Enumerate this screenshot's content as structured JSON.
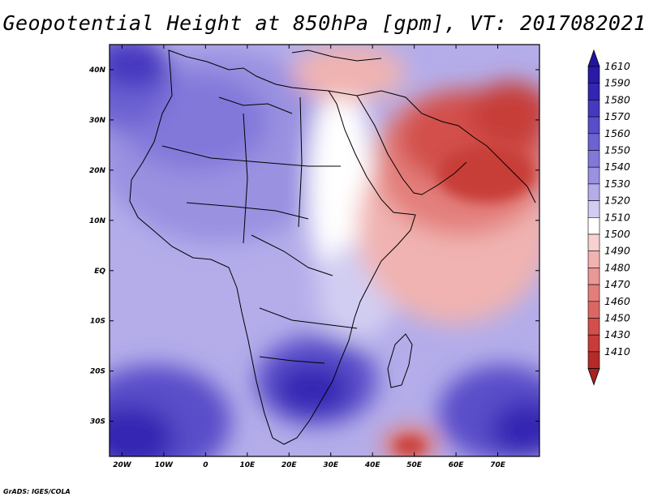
{
  "title": "Geopotential Height at 850hPa [gpm], VT: 2017082021",
  "credit": "GrADS: IGES/COLA",
  "map": {
    "region": "Africa and Middle East",
    "projection": "lat-lon",
    "lon_range": [
      -23,
      80
    ],
    "lat_range": [
      -37,
      45
    ],
    "lon_ticks": [
      {
        "value": -20,
        "label": "20W"
      },
      {
        "value": -10,
        "label": "10W"
      },
      {
        "value": 0,
        "label": "0"
      },
      {
        "value": 10,
        "label": "10E"
      },
      {
        "value": 20,
        "label": "20E"
      },
      {
        "value": 30,
        "label": "30E"
      },
      {
        "value": 40,
        "label": "40E"
      },
      {
        "value": 50,
        "label": "50E"
      },
      {
        "value": 60,
        "label": "60E"
      },
      {
        "value": 70,
        "label": "70E"
      }
    ],
    "lat_ticks": [
      {
        "value": 40,
        "label": "40N"
      },
      {
        "value": 30,
        "label": "30N"
      },
      {
        "value": 20,
        "label": "20N"
      },
      {
        "value": 10,
        "label": "10N"
      },
      {
        "value": 0,
        "label": "EQ"
      },
      {
        "value": -10,
        "label": "10S"
      },
      {
        "value": -20,
        "label": "20S"
      },
      {
        "value": -30,
        "label": "30S"
      }
    ]
  },
  "colorbar": {
    "levels": [
      {
        "label": "1610",
        "color": "#2a1aa6"
      },
      {
        "label": "1590",
        "color": "#3425b3"
      },
      {
        "label": "1580",
        "color": "#4738c0"
      },
      {
        "label": "1570",
        "color": "#5a4dc9"
      },
      {
        "label": "1560",
        "color": "#6d62d2"
      },
      {
        "label": "1550",
        "color": "#8278da"
      },
      {
        "label": "1540",
        "color": "#9a91e1"
      },
      {
        "label": "1530",
        "color": "#b4adea"
      },
      {
        "label": "1520",
        "color": "#d1cdf2"
      },
      {
        "label": "1510",
        "color": "#ffffff"
      },
      {
        "label": "1500",
        "color": "#f6d1d0"
      },
      {
        "label": "1490",
        "color": "#f0b3b1"
      },
      {
        "label": "1480",
        "color": "#ea9895"
      },
      {
        "label": "1470",
        "color": "#e37f7b"
      },
      {
        "label": "1460",
        "color": "#db6763"
      },
      {
        "label": "1450",
        "color": "#d24f4b"
      },
      {
        "label": "1430",
        "color": "#c73c38"
      },
      {
        "label": "1410",
        "color": "#b42b28"
      }
    ],
    "top_color": "#2214a0",
    "bottom_color": "#a8221f"
  }
}
